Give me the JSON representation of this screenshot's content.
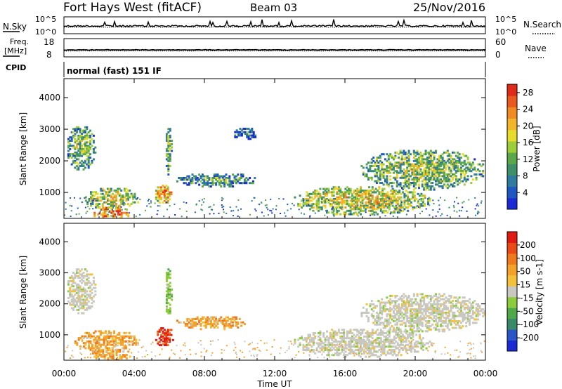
{
  "header": {
    "station": "Fort Hays West (fitACF)",
    "beam": "Beam 03",
    "date": "25/Nov/2016"
  },
  "status_panels": {
    "nsky_label": "N.Sky",
    "nsky_ticks": [
      "10^5",
      "10^0"
    ],
    "nsearch_label": "N.Search",
    "nsearch_ticks": [
      "10^5",
      "10^0"
    ],
    "freq_label": "Freq.",
    "freq_unit": "[MHz]",
    "freq_ticks": [
      "18",
      "8"
    ],
    "nave_label": "Nave",
    "nave_ticks": [
      "60",
      "0"
    ],
    "cpid_label": "CPID",
    "cpid_value": "normal (fast) 151 IF"
  },
  "time_axis": {
    "label": "Time UT",
    "ticks": [
      "00:00",
      "04:00",
      "08:00",
      "12:00",
      "16:00",
      "20:00",
      "00:00"
    ]
  },
  "chart_data": [
    {
      "type": "heatmap",
      "panel": "power",
      "ylabel": "Slant Range [km]",
      "yticks": [
        1000,
        2000,
        3000,
        4000
      ],
      "ylim": [
        180,
        4600
      ],
      "xlim_hours": [
        0,
        24
      ],
      "colorbar": {
        "label": "Power [dB]",
        "ticks": [
          4,
          8,
          12,
          16,
          20,
          24,
          28
        ],
        "range": [
          0,
          30
        ],
        "colors": [
          "#1a2bd6",
          "#1f57c2",
          "#2f7a9e",
          "#3f8f6a",
          "#5aa84a",
          "#9ecd3a",
          "#e8dc2a",
          "#f3b52a",
          "#f08a22",
          "#ea5a1e",
          "#e02a1a"
        ]
      },
      "echo_regions": [
        {
          "t": [
            0.1,
            1.8
          ],
          "r": [
            1700,
            3200
          ],
          "level": 0.45
        },
        {
          "t": [
            1.0,
            4.3
          ],
          "r": [
            500,
            1200
          ],
          "level": 0.55
        },
        {
          "t": [
            1.5,
            3.8
          ],
          "r": [
            180,
            600
          ],
          "level": 0.8
        },
        {
          "t": [
            5.1,
            6.2
          ],
          "r": [
            650,
            1300
          ],
          "level": 0.75
        },
        {
          "t": [
            5.7,
            6.1
          ],
          "r": [
            1600,
            3200
          ],
          "level": 0.45
        },
        {
          "t": [
            6.3,
            11.0
          ],
          "r": [
            1200,
            1650
          ],
          "level": 0.35
        },
        {
          "t": [
            13.0,
            20.8
          ],
          "r": [
            300,
            1250
          ],
          "level": 0.6
        },
        {
          "t": [
            16.8,
            24.0
          ],
          "r": [
            1100,
            2400
          ],
          "level": 0.5
        },
        {
          "t": [
            9.5,
            11.0
          ],
          "r": [
            2700,
            3100
          ],
          "level": 0.2
        }
      ]
    },
    {
      "type": "heatmap",
      "panel": "velocity",
      "ylabel": "Slant Range [km]",
      "yticks": [
        1000,
        2000,
        3000,
        4000
      ],
      "ylim": [
        180,
        4600
      ],
      "xlim_hours": [
        0,
        24
      ],
      "colorbar": {
        "label": "Velocity [m s-1]",
        "ticks": [
          "200",
          "100",
          "50",
          "15",
          "-15",
          "-50",
          "-100",
          "-200"
        ],
        "colors": [
          "#1a2bd6",
          "#2a55c8",
          "#3a8a6a",
          "#4fa84a",
          "#8ccc3a",
          "#c8c8c0",
          "#f3c23a",
          "#f3a22a",
          "#ef7a1e",
          "#ea4a18",
          "#e01a12"
        ]
      },
      "echo_regions": [
        {
          "t": [
            0.1,
            1.8
          ],
          "r": [
            1700,
            3200
          ],
          "class": "grey"
        },
        {
          "t": [
            0.5,
            4.3
          ],
          "r": [
            500,
            1200
          ],
          "class": "orange"
        },
        {
          "t": [
            1.5,
            3.8
          ],
          "r": [
            180,
            600
          ],
          "class": "orange"
        },
        {
          "t": [
            5.1,
            6.2
          ],
          "r": [
            650,
            1300
          ],
          "class": "red"
        },
        {
          "t": [
            5.7,
            6.1
          ],
          "r": [
            1600,
            3200
          ],
          "class": "green"
        },
        {
          "t": [
            6.3,
            10.5
          ],
          "r": [
            1200,
            1650
          ],
          "class": "orange"
        },
        {
          "t": [
            13.0,
            21.0
          ],
          "r": [
            300,
            1250
          ],
          "class": "grey"
        },
        {
          "t": [
            16.8,
            24.0
          ],
          "r": [
            1100,
            2400
          ],
          "class": "grey"
        }
      ]
    }
  ]
}
